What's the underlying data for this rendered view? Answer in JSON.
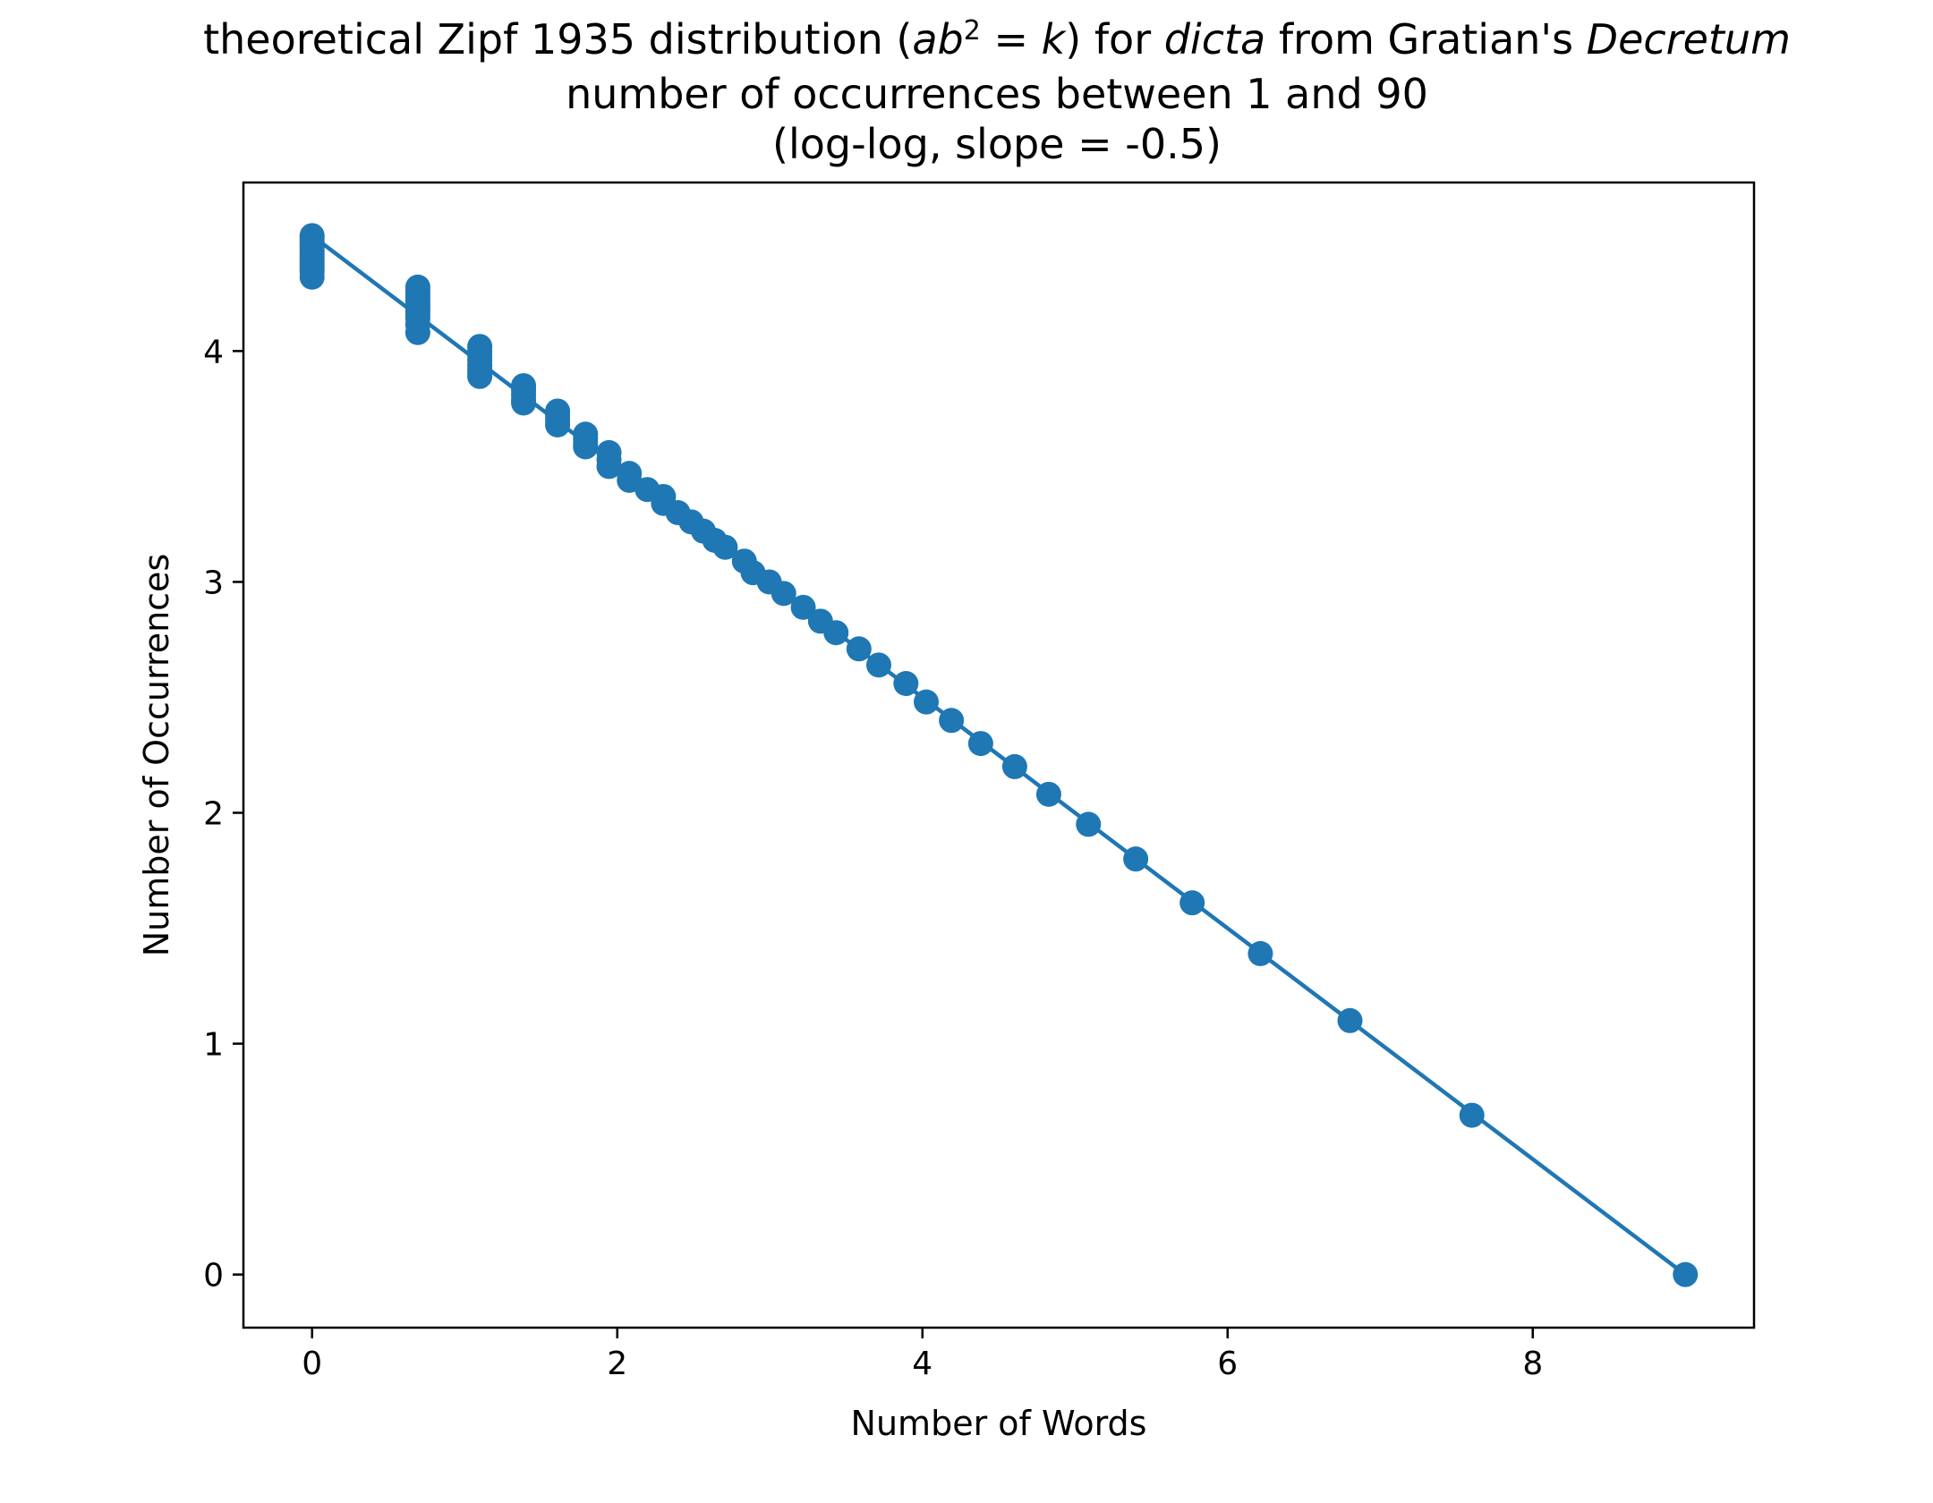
{
  "chart_data": {
    "type": "scatter",
    "title": {
      "line1": {
        "t1": "theoretical Zipf 1935 distribution (",
        "a": "a",
        "b": "b",
        "exp": "2",
        "eq": " = ",
        "k": "k",
        "t2": ") for ",
        "dicta": "dicta",
        "t3": " from Gratian's ",
        "decretum": "Decretum"
      },
      "line2": "number of occurrences between 1 and 90",
      "line3": "(log-log, slope = -0.5)"
    },
    "xlabel": "Number of Words",
    "ylabel": "Number of Occurrences",
    "xlim": [
      -0.45,
      9.45
    ],
    "ylim": [
      -0.23,
      4.73
    ],
    "xticks": [
      0,
      2,
      4,
      6,
      8
    ],
    "yticks": [
      0,
      1,
      2,
      3,
      4
    ],
    "grid": false,
    "legend": false,
    "color": "#1f77b4",
    "line_fit": {
      "slope": -0.5,
      "intercept": 4.4998,
      "x_range": [
        0,
        8.9996
      ]
    },
    "points": {
      "x": [
        0,
        0,
        0,
        0,
        0,
        0,
        0,
        0,
        0,
        0,
        0,
        0,
        0,
        0,
        0.693,
        0.693,
        0.693,
        0.693,
        0.693,
        0.693,
        0.693,
        0.693,
        0.693,
        0.693,
        0.693,
        0.693,
        1.099,
        1.099,
        1.099,
        1.099,
        1.099,
        1.099,
        1.099,
        1.099,
        1.386,
        1.386,
        1.386,
        1.386,
        1.386,
        1.609,
        1.609,
        1.609,
        1.609,
        1.792,
        1.792,
        1.792,
        1.792,
        1.946,
        1.946,
        1.946,
        2.079,
        2.079,
        2.197,
        2.303,
        2.303,
        2.398,
        2.485,
        2.565,
        2.639,
        2.708,
        2.833,
        2.89,
        2.996,
        3.091,
        3.219,
        3.332,
        3.434,
        3.584,
        3.714,
        3.892,
        4.025,
        4.19,
        4.382,
        4.605,
        4.828,
        5.088,
        5.398,
        5.768,
        6.215,
        6.802,
        7.601,
        9.0
      ],
      "y": [
        4.5,
        4.488,
        4.475,
        4.462,
        4.449,
        4.436,
        4.423,
        4.41,
        4.397,
        4.384,
        4.371,
        4.358,
        4.345,
        4.32,
        4.277,
        4.262,
        4.247,
        4.232,
        4.217,
        4.202,
        4.187,
        4.172,
        4.157,
        4.142,
        4.115,
        4.08,
        4.02,
        4.0,
        3.98,
        3.96,
        3.94,
        3.92,
        3.905,
        3.89,
        3.85,
        3.83,
        3.81,
        3.79,
        3.775,
        3.74,
        3.72,
        3.7,
        3.68,
        3.64,
        3.62,
        3.6,
        3.585,
        3.56,
        3.53,
        3.5,
        3.47,
        3.44,
        3.4,
        3.37,
        3.34,
        3.3,
        3.26,
        3.22,
        3.18,
        3.15,
        3.09,
        3.04,
        3.0,
        2.95,
        2.89,
        2.83,
        2.78,
        2.71,
        2.64,
        2.56,
        2.48,
        2.4,
        2.3,
        2.2,
        2.08,
        1.95,
        1.8,
        1.61,
        1.39,
        1.1,
        0.69,
        0.0
      ]
    }
  }
}
